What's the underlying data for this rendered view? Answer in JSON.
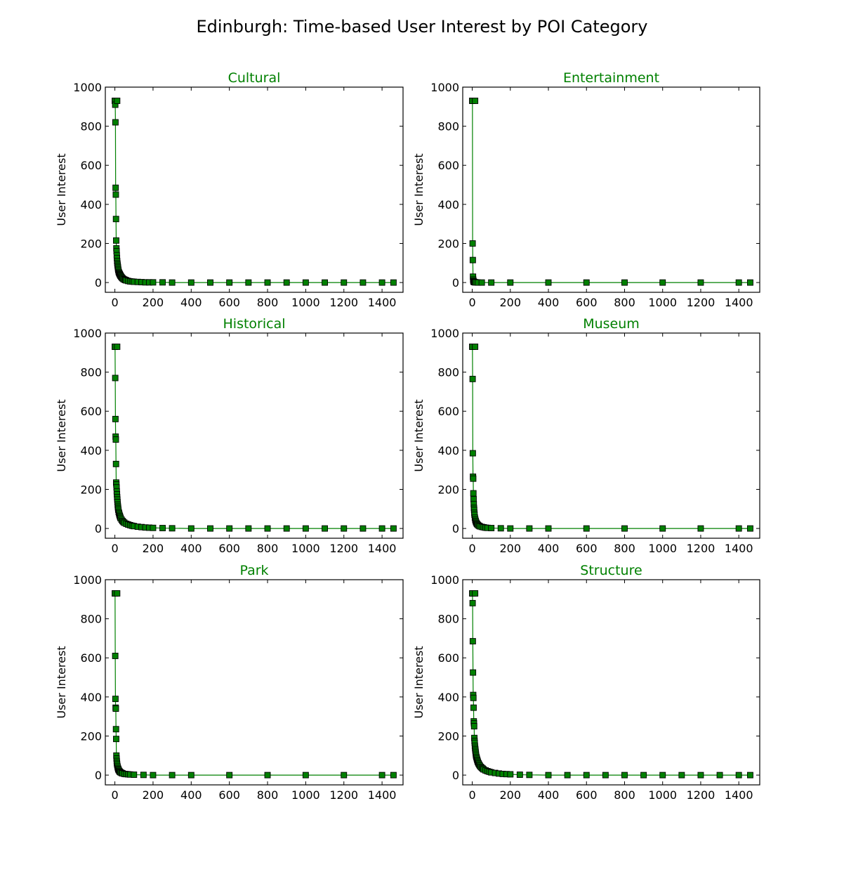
{
  "figure": {
    "title": "Edinburgh: Time-based User Interest by POI Category",
    "accent_color": "#008000",
    "marker_edge_color": "#000000"
  },
  "chart_data": [
    {
      "type": "line",
      "title": "Cultural",
      "xlabel": "",
      "ylabel": "User Interest",
      "xlim": [
        -50,
        1510
      ],
      "ylim": [
        -50,
        1000
      ],
      "xticks": [
        0,
        200,
        400,
        600,
        800,
        1000,
        1200,
        1400
      ],
      "yticks": [
        0,
        200,
        400,
        600,
        800,
        1000
      ],
      "marker": "square",
      "grid": false,
      "series": [
        {
          "x": [
            0,
            1,
            2,
            3,
            4,
            5,
            6,
            7,
            8,
            9,
            10,
            11,
            12,
            13,
            14,
            15,
            16,
            17,
            18,
            20,
            22,
            24,
            26,
            28,
            30,
            33,
            36,
            40,
            45,
            50,
            55,
            60,
            70,
            80,
            90,
            100,
            120,
            140,
            160,
            180,
            200,
            250,
            300,
            400,
            500,
            600,
            700,
            800,
            900,
            1000,
            1100,
            1200,
            1300,
            1400,
            1460
          ],
          "y": [
            930,
            930,
            910,
            820,
            485,
            450,
            325,
            215,
            175,
            160,
            140,
            125,
            110,
            100,
            92,
            85,
            78,
            70,
            64,
            55,
            50,
            46,
            42,
            38,
            34,
            30,
            26,
            22,
            18,
            15,
            13,
            11,
            8,
            6,
            5,
            4,
            3,
            2,
            1,
            1,
            1,
            1,
            0,
            0,
            0,
            0,
            0,
            0,
            0,
            0,
            0,
            0,
            0,
            0,
            0
          ],
          "end_marker": [
            12,
            930
          ]
        }
      ]
    },
    {
      "type": "line",
      "title": "Entertainment",
      "xlabel": "",
      "ylabel": "User Interest",
      "xlim": [
        -50,
        1510
      ],
      "ylim": [
        -50,
        1000
      ],
      "xticks": [
        0,
        200,
        400,
        600,
        800,
        1000,
        1200,
        1400
      ],
      "yticks": [
        0,
        200,
        400,
        600,
        800,
        1000
      ],
      "marker": "square",
      "grid": false,
      "series": [
        {
          "x": [
            0,
            1,
            2,
            3,
            4,
            5,
            6,
            7,
            8,
            10,
            12,
            15,
            20,
            30,
            50,
            100,
            200,
            400,
            600,
            800,
            1000,
            1200,
            1400,
            1460
          ],
          "y": [
            930,
            930,
            200,
            115,
            30,
            15,
            8,
            5,
            4,
            3,
            2,
            1,
            1,
            0,
            0,
            0,
            0,
            0,
            0,
            0,
            0,
            0,
            0,
            0
          ],
          "end_marker": [
            15,
            930
          ]
        }
      ]
    },
    {
      "type": "line",
      "title": "Historical",
      "xlabel": "",
      "ylabel": "User Interest",
      "xlim": [
        -50,
        1510
      ],
      "ylim": [
        -50,
        1000
      ],
      "xticks": [
        0,
        200,
        400,
        600,
        800,
        1000,
        1200,
        1400
      ],
      "yticks": [
        0,
        200,
        400,
        600,
        800,
        1000
      ],
      "marker": "square",
      "grid": false,
      "series": [
        {
          "x": [
            0,
            1,
            2,
            3,
            4,
            5,
            6,
            7,
            8,
            9,
            10,
            11,
            12,
            13,
            14,
            15,
            16,
            17,
            18,
            20,
            22,
            24,
            26,
            28,
            30,
            35,
            40,
            45,
            50,
            60,
            70,
            80,
            90,
            100,
            120,
            140,
            160,
            180,
            200,
            250,
            300,
            400,
            500,
            600,
            700,
            800,
            900,
            1000,
            1100,
            1200,
            1300,
            1400,
            1460
          ],
          "y": [
            930,
            930,
            770,
            560,
            470,
            455,
            330,
            235,
            225,
            210,
            190,
            175,
            160,
            148,
            135,
            122,
            112,
            104,
            96,
            85,
            78,
            70,
            64,
            58,
            53,
            45,
            38,
            33,
            29,
            24,
            20,
            17,
            14,
            12,
            9,
            7,
            5,
            4,
            3,
            2,
            1,
            0,
            0,
            0,
            0,
            0,
            0,
            0,
            0,
            0,
            0,
            0,
            0
          ],
          "end_marker": [
            12,
            930
          ]
        }
      ]
    },
    {
      "type": "line",
      "title": "Museum",
      "xlabel": "",
      "ylabel": "User Interest",
      "xlim": [
        -50,
        1510
      ],
      "ylim": [
        -50,
        1000
      ],
      "xticks": [
        0,
        200,
        400,
        600,
        800,
        1000,
        1200,
        1400
      ],
      "yticks": [
        0,
        200,
        400,
        600,
        800,
        1000
      ],
      "marker": "square",
      "grid": false,
      "series": [
        {
          "x": [
            0,
            1,
            2,
            3,
            4,
            5,
            6,
            7,
            8,
            9,
            10,
            11,
            12,
            14,
            16,
            18,
            20,
            23,
            26,
            30,
            35,
            40,
            50,
            60,
            70,
            80,
            100,
            150,
            200,
            300,
            400,
            600,
            800,
            1000,
            1200,
            1400,
            1460
          ],
          "y": [
            930,
            930,
            765,
            385,
            265,
            255,
            180,
            150,
            125,
            105,
            95,
            80,
            70,
            55,
            45,
            38,
            32,
            26,
            22,
            18,
            14,
            11,
            8,
            6,
            4,
            3,
            2,
            1,
            0,
            0,
            0,
            0,
            0,
            0,
            0,
            0,
            0
          ],
          "end_marker": [
            15,
            930
          ]
        }
      ]
    },
    {
      "type": "line",
      "title": "Park",
      "xlabel": "",
      "ylabel": "User Interest",
      "xlim": [
        -50,
        1510
      ],
      "ylim": [
        -50,
        1000
      ],
      "xticks": [
        0,
        200,
        400,
        600,
        800,
        1000,
        1200,
        1400
      ],
      "yticks": [
        0,
        200,
        400,
        600,
        800,
        1000
      ],
      "marker": "square",
      "grid": false,
      "series": [
        {
          "x": [
            0,
            1,
            2,
            3,
            4,
            5,
            6,
            7,
            8,
            9,
            10,
            11,
            12,
            14,
            16,
            18,
            20,
            23,
            26,
            30,
            35,
            40,
            50,
            60,
            70,
            80,
            100,
            150,
            200,
            300,
            400,
            600,
            800,
            1000,
            1200,
            1400,
            1460
          ],
          "y": [
            930,
            930,
            610,
            390,
            345,
            340,
            235,
            185,
            100,
            85,
            72,
            62,
            54,
            44,
            36,
            30,
            26,
            21,
            17,
            14,
            11,
            9,
            6,
            5,
            4,
            3,
            2,
            1,
            0,
            0,
            0,
            0,
            0,
            0,
            0,
            0,
            0
          ],
          "end_marker": [
            12,
            930
          ]
        }
      ]
    },
    {
      "type": "line",
      "title": "Structure",
      "xlabel": "",
      "ylabel": "User Interest",
      "xlim": [
        -50,
        1510
      ],
      "ylim": [
        -50,
        1000
      ],
      "xticks": [
        0,
        200,
        400,
        600,
        800,
        1000,
        1200,
        1400
      ],
      "yticks": [
        0,
        200,
        400,
        600,
        800,
        1000
      ],
      "marker": "square",
      "grid": false,
      "series": [
        {
          "x": [
            0,
            1,
            2,
            3,
            4,
            5,
            6,
            7,
            8,
            9,
            10,
            11,
            12,
            13,
            14,
            15,
            16,
            17,
            18,
            19,
            20,
            22,
            24,
            26,
            28,
            30,
            33,
            36,
            40,
            45,
            50,
            55,
            60,
            70,
            80,
            90,
            100,
            120,
            140,
            160,
            180,
            200,
            250,
            300,
            400,
            500,
            600,
            700,
            800,
            900,
            1000,
            1100,
            1200,
            1300,
            1400,
            1460
          ],
          "y": [
            930,
            930,
            880,
            685,
            525,
            410,
            395,
            345,
            275,
            265,
            250,
            190,
            175,
            165,
            150,
            140,
            132,
            124,
            116,
            108,
            100,
            92,
            85,
            78,
            72,
            66,
            60,
            54,
            48,
            42,
            37,
            33,
            29,
            24,
            20,
            17,
            14,
            11,
            8,
            6,
            5,
            4,
            2,
            1,
            0,
            0,
            0,
            0,
            0,
            0,
            0,
            0,
            0,
            0,
            0,
            0
          ],
          "end_marker": [
            15,
            930
          ]
        }
      ]
    }
  ]
}
